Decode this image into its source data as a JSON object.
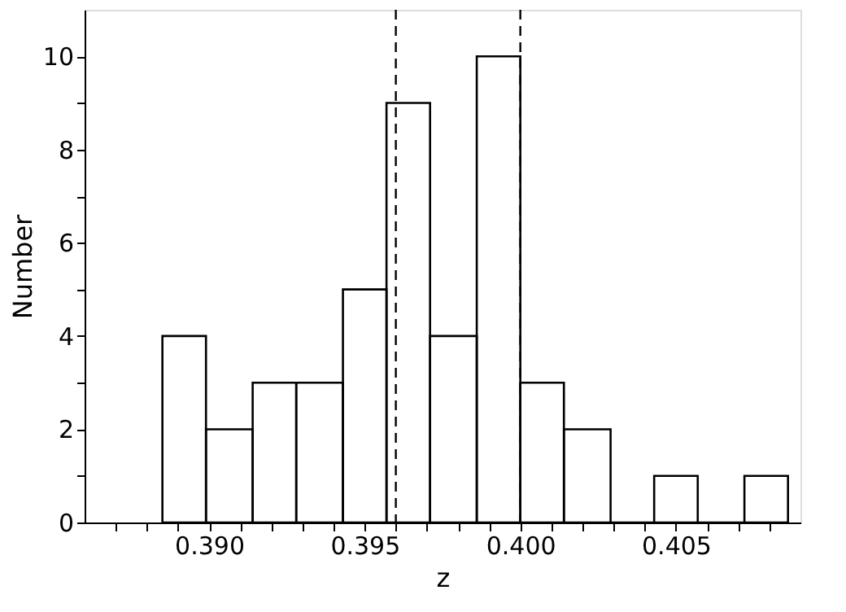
{
  "chart_data": {
    "type": "histogram",
    "xlabel": "z",
    "ylabel": "Number",
    "bins": [
      0.3885,
      0.3899,
      0.3914,
      0.3928,
      0.3943,
      0.3957,
      0.3971,
      0.3986,
      0.4,
      0.4014,
      0.4029,
      0.4043,
      0.4057,
      0.4072,
      0.4086
    ],
    "values": [
      4,
      2,
      3,
      3,
      5,
      9,
      4,
      10,
      3,
      2,
      0,
      1,
      0,
      1
    ],
    "color": "#000000",
    "xlim": [
      0.386,
      0.409
    ],
    "xticks": [
      {
        "value": 0.387,
        "label": null
      },
      {
        "value": 0.388,
        "label": null
      },
      {
        "value": 0.389,
        "label": null
      },
      {
        "value": 0.39,
        "label": "0.390"
      },
      {
        "value": 0.391,
        "label": null
      },
      {
        "value": 0.392,
        "label": null
      },
      {
        "value": 0.393,
        "label": null
      },
      {
        "value": 0.394,
        "label": null
      },
      {
        "value": 0.395,
        "label": "0.395"
      },
      {
        "value": 0.396,
        "label": null
      },
      {
        "value": 0.397,
        "label": null
      },
      {
        "value": 0.398,
        "label": null
      },
      {
        "value": 0.399,
        "label": null
      },
      {
        "value": 0.4,
        "label": "0.400"
      },
      {
        "value": 0.401,
        "label": null
      },
      {
        "value": 0.402,
        "label": null
      },
      {
        "value": 0.403,
        "label": null
      },
      {
        "value": 0.404,
        "label": null
      },
      {
        "value": 0.405,
        "label": "0.405"
      },
      {
        "value": 0.406,
        "label": null
      },
      {
        "value": 0.407,
        "label": null
      },
      {
        "value": 0.408,
        "label": null
      }
    ],
    "ylim": [
      0,
      11
    ],
    "yticks": [
      0,
      {
        "value": 1,
        "label": null
      },
      2,
      {
        "value": 3,
        "label": null
      },
      4,
      {
        "value": 5,
        "label": null
      },
      6,
      {
        "value": 7,
        "label": null
      },
      8,
      {
        "value": 9,
        "label": null
      },
      10
    ],
    "ref_lines": [
      {
        "axis": "x",
        "value": 0.396,
        "line_style": "dashed",
        "color": "#000000"
      },
      {
        "axis": "x",
        "value": 0.4,
        "line_style": "dashed",
        "color": "#000000"
      }
    ],
    "grid": false
  }
}
